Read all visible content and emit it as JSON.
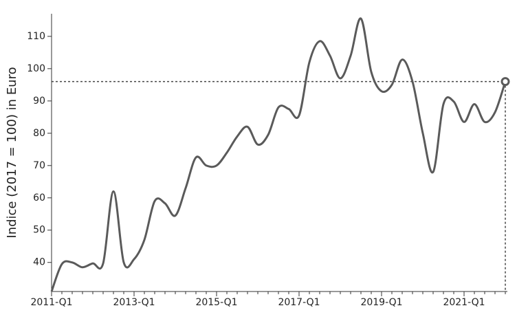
{
  "chart_data": {
    "type": "line",
    "ylabel": "Indice (2017 = 100) in Euro",
    "categories": [
      "2011-Q1",
      null,
      null,
      null,
      null,
      null,
      null,
      null,
      "2013-Q1",
      null,
      null,
      null,
      null,
      null,
      null,
      null,
      "2015-Q1",
      null,
      null,
      null,
      null,
      null,
      null,
      null,
      "2017-Q1",
      null,
      null,
      null,
      null,
      null,
      null,
      null,
      "2019-Q1",
      null,
      null,
      null,
      null,
      null,
      null,
      null,
      "2021-Q1",
      null,
      null,
      null,
      null
    ],
    "series": [
      {
        "name": "Indice",
        "color": "#5a5a5a",
        "values": [
          31,
          39.5,
          40,
          38.5,
          39.7,
          39.7,
          62,
          40,
          41,
          47,
          59,
          58.3,
          54.5,
          63,
          72.5,
          70,
          70,
          74,
          79,
          82,
          76.5,
          79.5,
          88,
          87.5,
          85.5,
          102,
          108.5,
          104,
          97,
          104,
          115.5,
          99,
          93,
          95,
          102.8,
          96,
          80,
          68,
          89,
          89.8,
          83.5,
          89,
          83.5,
          86.5,
          96
        ]
      }
    ],
    "ylim": [
      31,
      117
    ],
    "yticks": [
      40,
      50,
      60,
      70,
      80,
      90,
      100,
      110
    ]
  }
}
